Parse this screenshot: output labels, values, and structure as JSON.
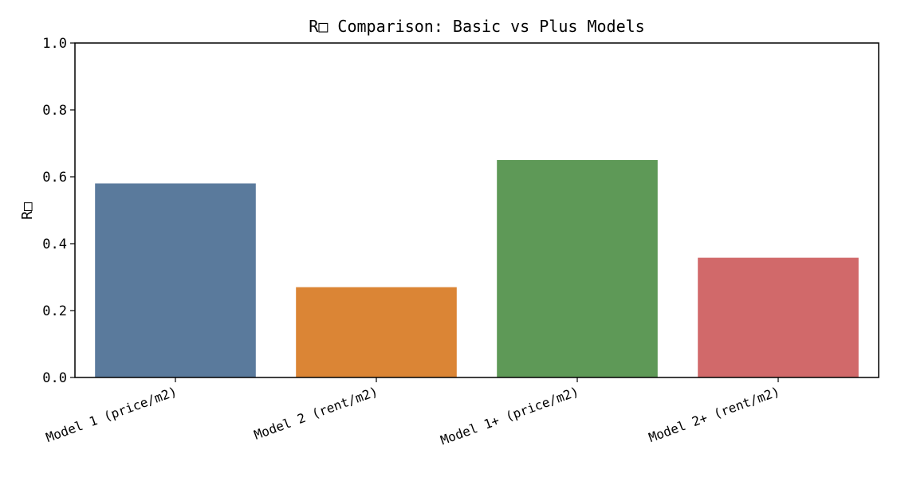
{
  "chart_data": {
    "type": "bar",
    "title": "R□ Comparison: Basic vs Plus Models",
    "xlabel": "",
    "ylabel": "R□",
    "categories": [
      "Model 1 (price/m2)",
      "Model 2 (rent/m2)",
      "Model 1+ (price/m2)",
      "Model 2+ (rent/m2)"
    ],
    "values": [
      0.58,
      0.27,
      0.65,
      0.358
    ],
    "colors": [
      "#5a7a9c",
      "#db8535",
      "#5e9957",
      "#d1696a"
    ],
    "ylim": [
      0,
      1.0
    ],
    "yticks": [
      "0.0",
      "0.2",
      "0.4",
      "0.6",
      "0.8",
      "1.0"
    ],
    "grid": false,
    "legend": "none"
  }
}
